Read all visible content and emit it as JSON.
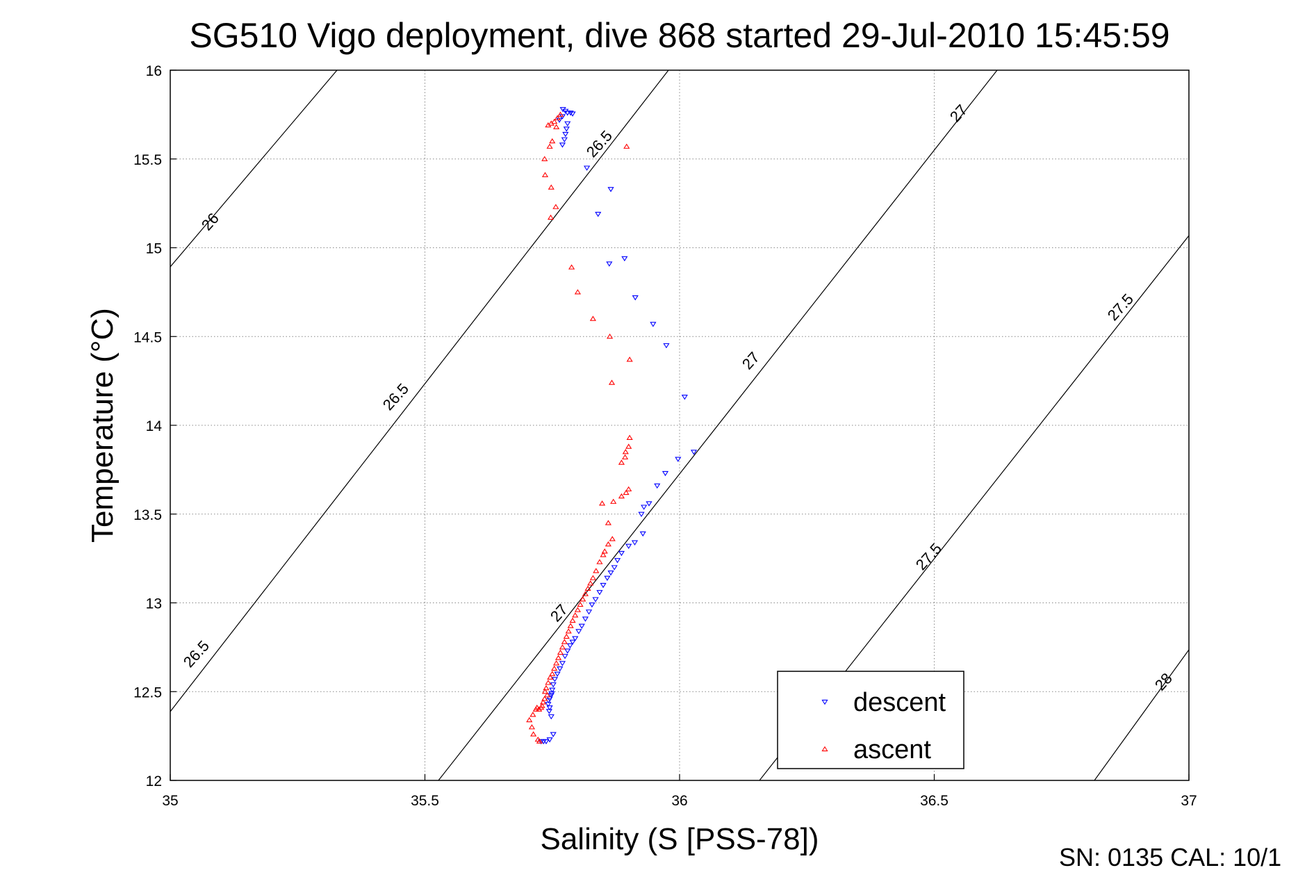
{
  "chart_data": {
    "type": "scatter",
    "title": "SG510 Vigo deployment, dive 868 started 29-Jul-2010 15:45:59",
    "xlabel": "Salinity (S [PSS-78])",
    "ylabel": "Temperature (°C)",
    "xlim": [
      35,
      37
    ],
    "ylim": [
      12,
      16
    ],
    "xticks": [
      "35",
      "35.5",
      "36",
      "36.5",
      "37"
    ],
    "yticks": [
      "12",
      "12.5",
      "13",
      "13.5",
      "14",
      "14.5",
      "15",
      "15.5",
      "16"
    ],
    "grid": true,
    "legend_position": "bottom-right",
    "footer": "SN: 0135  CAL: 10/1",
    "isopycnal_labels": [
      "26",
      "26.5",
      "26.5",
      "26.5",
      "27",
      "27",
      "27",
      "27.5",
      "27.5",
      "28"
    ],
    "series": [
      {
        "name": "descent",
        "color": "#0000ff",
        "marker": "down-triangle",
        "points": [
          [
            35.771,
            15.78
          ],
          [
            35.776,
            15.77
          ],
          [
            35.78,
            15.76
          ],
          [
            35.786,
            15.76
          ],
          [
            35.79,
            15.755
          ],
          [
            35.77,
            15.74
          ],
          [
            35.764,
            15.72
          ],
          [
            35.78,
            15.7
          ],
          [
            35.778,
            15.67
          ],
          [
            35.776,
            15.64
          ],
          [
            35.774,
            15.61
          ],
          [
            35.77,
            15.58
          ],
          [
            35.818,
            15.45
          ],
          [
            35.865,
            15.33
          ],
          [
            35.84,
            15.19
          ],
          [
            35.892,
            14.94
          ],
          [
            35.862,
            14.91
          ],
          [
            35.913,
            14.72
          ],
          [
            35.948,
            14.57
          ],
          [
            35.974,
            14.45
          ],
          [
            36.01,
            14.16
          ],
          [
            36.028,
            13.85
          ],
          [
            35.997,
            13.81
          ],
          [
            35.972,
            13.73
          ],
          [
            35.956,
            13.66
          ],
          [
            35.94,
            13.56
          ],
          [
            35.93,
            13.54
          ],
          [
            35.925,
            13.5
          ],
          [
            35.928,
            13.39
          ],
          [
            35.912,
            13.34
          ],
          [
            35.9,
            13.32
          ],
          [
            35.886,
            13.28
          ],
          [
            35.878,
            13.24
          ],
          [
            35.872,
            13.2
          ],
          [
            35.865,
            13.17
          ],
          [
            35.858,
            13.14
          ],
          [
            35.85,
            13.1
          ],
          [
            35.843,
            13.06
          ],
          [
            35.835,
            13.02
          ],
          [
            35.828,
            12.99
          ],
          [
            35.822,
            12.95
          ],
          [
            35.815,
            12.91
          ],
          [
            35.808,
            12.87
          ],
          [
            35.802,
            12.84
          ],
          [
            35.795,
            12.8
          ],
          [
            35.79,
            12.78
          ],
          [
            35.785,
            12.76
          ],
          [
            35.78,
            12.73
          ],
          [
            35.775,
            12.7
          ],
          [
            35.77,
            12.66
          ],
          [
            35.765,
            12.63
          ],
          [
            35.76,
            12.6
          ],
          [
            35.755,
            12.57
          ],
          [
            35.752,
            12.54
          ],
          [
            35.75,
            12.51
          ],
          [
            35.749,
            12.49
          ],
          [
            35.748,
            12.48
          ],
          [
            35.745,
            12.46
          ],
          [
            35.743,
            12.45
          ],
          [
            35.742,
            12.43
          ],
          [
            35.745,
            12.41
          ],
          [
            35.744,
            12.39
          ],
          [
            35.748,
            12.36
          ],
          [
            35.752,
            12.26
          ],
          [
            35.745,
            12.23
          ],
          [
            35.738,
            12.22
          ],
          [
            35.733,
            12.22
          ],
          [
            35.728,
            12.22
          ]
        ]
      },
      {
        "name": "ascent",
        "color": "#ff0000",
        "marker": "up-triangle",
        "points": [
          [
            35.766,
            15.75
          ],
          [
            35.76,
            15.73
          ],
          [
            35.754,
            15.71
          ],
          [
            35.748,
            15.7
          ],
          [
            35.742,
            15.69
          ],
          [
            35.758,
            15.68
          ],
          [
            35.75,
            15.6
          ],
          [
            35.745,
            15.57
          ],
          [
            35.735,
            15.5
          ],
          [
            35.736,
            15.41
          ],
          [
            35.896,
            15.57
          ],
          [
            35.748,
            15.34
          ],
          [
            35.757,
            15.23
          ],
          [
            35.747,
            15.17
          ],
          [
            35.788,
            14.89
          ],
          [
            35.8,
            14.75
          ],
          [
            35.83,
            14.6
          ],
          [
            35.863,
            14.5
          ],
          [
            35.902,
            14.37
          ],
          [
            35.867,
            14.24
          ],
          [
            35.902,
            13.93
          ],
          [
            35.9,
            13.88
          ],
          [
            35.894,
            13.85
          ],
          [
            35.893,
            13.82
          ],
          [
            35.886,
            13.79
          ],
          [
            35.9,
            13.64
          ],
          [
            35.895,
            13.62
          ],
          [
            35.886,
            13.6
          ],
          [
            35.87,
            13.57
          ],
          [
            35.848,
            13.56
          ],
          [
            35.86,
            13.45
          ],
          [
            35.868,
            13.36
          ],
          [
            35.86,
            13.33
          ],
          [
            35.853,
            13.29
          ],
          [
            35.85,
            13.27
          ],
          [
            35.843,
            13.23
          ],
          [
            35.836,
            13.18
          ],
          [
            35.83,
            13.14
          ],
          [
            35.825,
            13.11
          ],
          [
            35.82,
            13.08
          ],
          [
            35.815,
            13.05
          ],
          [
            35.81,
            13.02
          ],
          [
            35.805,
            12.99
          ],
          [
            35.8,
            12.96
          ],
          [
            35.795,
            12.93
          ],
          [
            35.79,
            12.9
          ],
          [
            35.786,
            12.87
          ],
          [
            35.782,
            12.84
          ],
          [
            35.778,
            12.81
          ],
          [
            35.774,
            12.78
          ],
          [
            35.77,
            12.75
          ],
          [
            35.766,
            12.72
          ],
          [
            35.762,
            12.69
          ],
          [
            35.758,
            12.66
          ],
          [
            35.754,
            12.63
          ],
          [
            35.75,
            12.6
          ],
          [
            35.746,
            12.58
          ],
          [
            35.742,
            12.55
          ],
          [
            35.738,
            12.52
          ],
          [
            35.736,
            12.5
          ],
          [
            35.74,
            12.48
          ],
          [
            35.735,
            12.46
          ],
          [
            35.732,
            12.44
          ],
          [
            35.73,
            12.42
          ],
          [
            35.728,
            12.41
          ],
          [
            35.724,
            12.4
          ],
          [
            35.72,
            12.41
          ],
          [
            35.718,
            12.4
          ],
          [
            35.712,
            12.37
          ],
          [
            35.705,
            12.34
          ],
          [
            35.71,
            12.3
          ],
          [
            35.713,
            12.26
          ],
          [
            35.722,
            12.23
          ],
          [
            35.725,
            12.22
          ]
        ]
      }
    ]
  }
}
